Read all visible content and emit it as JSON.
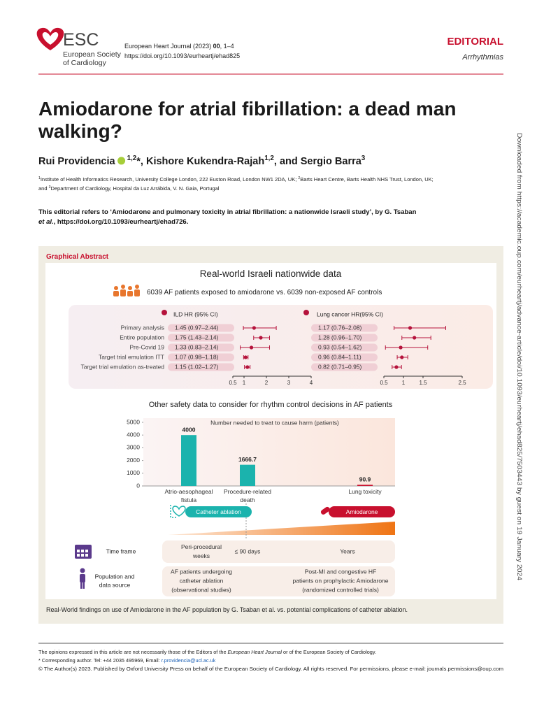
{
  "header": {
    "logo": "ESC",
    "society_lines": [
      "European Society",
      "of Cardiology"
    ],
    "citation": [
      {
        "text": "European Heart Journal (2023) "
      },
      {
        "text": "00",
        "style": "bold"
      },
      {
        "text": ", 1–4"
      }
    ],
    "doi": "https://doi.org/10.1093/eurheartj/ehad825",
    "section": "EDITORIAL",
    "subsection": "Arrhythmias"
  },
  "title_lines": [
    "Amiodarone for atrial fibrillation: a dead man",
    "walking?"
  ],
  "authors": [
    {
      "text": "Rui Providencia"
    },
    {
      "text": "1,2",
      "style": "sup",
      "orcid": true
    },
    {
      "text": "*, Kishore Kukendra-Rajah"
    },
    {
      "text": "1,2",
      "style": "sup"
    },
    {
      "text": ", and Sergio Barra"
    },
    {
      "text": "3",
      "style": "sup"
    }
  ],
  "affiliation_lines": [
    [
      {
        "text": "1",
        "style": "sup"
      },
      {
        "text": "Institute of Health Informatics Research, University College London, 222 Euston Road, London NW1 2DA, UK; "
      },
      {
        "text": "2",
        "style": "sup"
      },
      {
        "text": "Barts Heart Centre, Barts Health NHS Trust, London, UK;"
      }
    ],
    [
      {
        "text": "and "
      },
      {
        "text": "3",
        "style": "sup"
      },
      {
        "text": "Department of Cardiology, Hospital da Luz Arrábida, V. N. Gaia, Portugal"
      }
    ]
  ],
  "editorial_ref_lines": [
    [
      {
        "text": "This editorial refers to ‘Amiodarone and pulmonary toxicity in atrial fibrillation: a nationwide Israeli study’, by G. Tsaban"
      }
    ],
    [
      {
        "text": "et al.",
        "style": "italic"
      },
      {
        "text": ", https://doi.org/10.1093/eurheartj/ehad726."
      }
    ]
  ],
  "graphical_abstract": {
    "label": "Graphical Abstract",
    "heading": "Real-world Israeli nationwide data",
    "cohort_text": "6039 AF patients exposed to amiodarone vs. 6039 non-exposed AF controls",
    "forest": {
      "type": "forest",
      "row_labels": [
        "Primary analysis",
        "Entire population",
        "Pre-Covid 19",
        "Target trial emulation ITT",
        "Target trial emulation as-treated"
      ],
      "panels": [
        {
          "name": "ILD HR (95% CI)",
          "color": "#b5123b",
          "values": [
            1.45,
            1.75,
            1.33,
            1.07,
            1.15
          ],
          "lower": [
            0.97,
            1.43,
            0.83,
            0.98,
            1.02
          ],
          "upper": [
            2.44,
            2.14,
            2.14,
            1.18,
            1.27
          ],
          "value_labels": [
            "1.45 (0.97–2.44)",
            "1.75 (1.43–2.14)",
            "1.33 (0.83–2.14)",
            "1.07 (0.98–1.18)",
            "1.15 (1.02–1.27)"
          ],
          "xlim": [
            0.5,
            4
          ],
          "xticks": [
            0.5,
            1,
            2,
            3,
            4
          ]
        },
        {
          "name": "Lung cancer HR(95% CI)",
          "color": "#b5123b",
          "values": [
            1.17,
            1.28,
            0.93,
            0.96,
            0.82
          ],
          "lower": [
            0.76,
            0.96,
            0.54,
            0.84,
            0.71
          ],
          "upper": [
            2.08,
            1.7,
            1.62,
            1.11,
            0.95
          ],
          "value_labels": [
            "1.17 (0.76–2.08)",
            "1.28 (0.96–1.70)",
            "0.93 (0.54–1.62)",
            "0.96 (0.84–1.11)",
            "0.82 (0.71–0.95)"
          ],
          "xlim": [
            0.5,
            2.5
          ],
          "xticks": [
            0.5,
            1,
            1.5,
            2.5
          ]
        }
      ]
    },
    "safety_heading": "Other safety data to consider for rhythm control decisions in AF patients",
    "safety_chart": {
      "type": "bar",
      "title": "Number needed to treat to cause harm (patients)",
      "categories": [
        "Atrio-aesophageal fistula",
        "Procedure-related death",
        null,
        "Lung toxicity"
      ],
      "values": [
        4000,
        1666.7,
        null,
        90.9
      ],
      "colors": [
        "#1bb3ad",
        "#1bb3ad",
        null,
        "#c8102e"
      ],
      "ylim": [
        0,
        5000
      ],
      "yticks": [
        0,
        1000,
        2000,
        3000,
        4000,
        5000
      ]
    },
    "treatments": [
      {
        "name": "Catheter ablation",
        "color": "#1bb3ad"
      },
      {
        "name": "Amiodarone",
        "color": "#c8102e"
      }
    ],
    "rows": [
      {
        "label_lines": [
          "Time frame"
        ],
        "cells": [
          {
            "lines": [
              "Peri-procedural",
              "weeks"
            ]
          },
          {
            "lines": [
              "≤ 90 days"
            ]
          },
          {
            "lines": [
              "Years"
            ]
          }
        ]
      },
      {
        "label_lines": [
          "Population and",
          "data source"
        ],
        "cells": [
          {
            "lines": [
              "AF patients undergoing",
              "catheter ablation",
              "(observational studies)"
            ]
          },
          {
            "lines": [
              "Post-MI and congestive HF",
              "patients on prophylactic Amiodarone",
              "(randomized controlled trials)"
            ]
          }
        ]
      }
    ],
    "caption": "Real-World findings on use of Amiodarone in the AF population by G. Tsaban et al. vs. potential complications of catheter ablation."
  },
  "footer_lines": [
    [
      {
        "text": "The opinions expressed in this article are not necessarily those of the Editors of the "
      },
      {
        "text": "European Heart Journal",
        "style": "italic"
      },
      {
        "text": " or of the European Society of Cardiology."
      }
    ],
    [
      {
        "text": "* Corresponding author. Tel: +44 2035 495969, Email: "
      },
      {
        "text": "r.providencia@ucl.ac.uk",
        "style": "link"
      }
    ],
    [
      {
        "text": "© The Author(s) 2023. Published by Oxford University Press on behalf of the European Society of Cardiology. All rights reserved. For permissions, please e-mail: journals.permissions@oup.com"
      }
    ]
  ],
  "download_note": "Downloaded from https://academic.oup.com/eurheartj/advance-article/doi/10.1093/eurheartj/ehad825/7503443 by guest on 19 January 2024"
}
